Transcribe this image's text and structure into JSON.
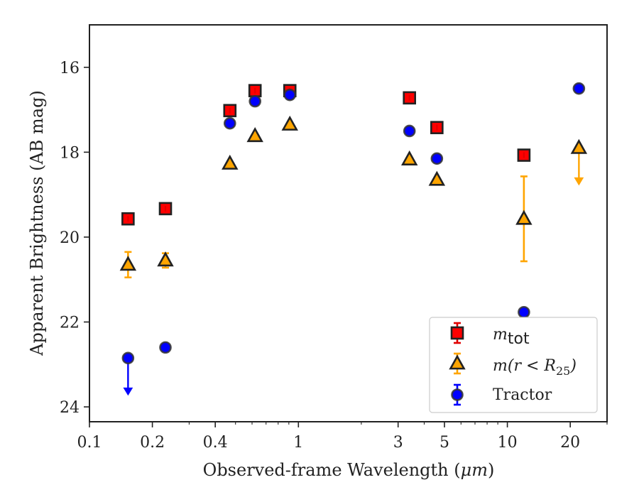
{
  "chart_data": {
    "type": "scatter",
    "xlabel_prefix": "Observed-frame Wavelength (",
    "xlabel_unit": "μm",
    "xlabel_suffix": ")",
    "ylabel": "Apparent Brightness (AB mag)",
    "x_scale": "log",
    "xlim": [
      0.1,
      30
    ],
    "ylim": [
      24.35,
      15.0
    ],
    "y_inverted": true,
    "grid": false,
    "legend_position": "lower right",
    "x_ticks": [
      0.1,
      0.2,
      0.4,
      1,
      3,
      5,
      10,
      20
    ],
    "x_tick_labels": [
      "0.1",
      "0.2",
      "0.4",
      "1",
      "3",
      "5",
      "10",
      "20"
    ],
    "y_ticks": [
      16,
      18,
      20,
      22,
      24
    ],
    "y_tick_labels": [
      "16",
      "18",
      "20",
      "22",
      "24"
    ],
    "series": [
      {
        "key": "mtot",
        "name": "m_tot",
        "legend_main": "m",
        "legend_sub": "tot",
        "marker": "square",
        "color": "#ff0000",
        "edge_color": "#222222",
        "errorbar_color": "#e00000",
        "points": [
          {
            "x": 0.153,
            "y": 19.57
          },
          {
            "x": 0.231,
            "y": 19.33
          },
          {
            "x": 0.47,
            "y": 17.02
          },
          {
            "x": 0.62,
            "y": 16.55
          },
          {
            "x": 0.91,
            "y": 16.55
          },
          {
            "x": 3.4,
            "y": 16.72
          },
          {
            "x": 4.6,
            "y": 17.42
          },
          {
            "x": 12.0,
            "y": 18.07
          }
        ]
      },
      {
        "key": "mr25",
        "name": "m(r < R_25)",
        "legend_main": "m(r < R",
        "legend_sub": "25",
        "legend_tail": ")",
        "marker": "triangle",
        "color": "#ffa500",
        "edge_color": "#222222",
        "errorbar_color": "#ffa500",
        "points": [
          {
            "x": 0.153,
            "y": 20.65,
            "yerr": 0.3
          },
          {
            "x": 0.231,
            "y": 20.55,
            "yerr": 0.17
          },
          {
            "x": 0.47,
            "y": 18.27
          },
          {
            "x": 0.62,
            "y": 17.62
          },
          {
            "x": 0.91,
            "y": 17.35
          },
          {
            "x": 3.4,
            "y": 18.17
          },
          {
            "x": 4.6,
            "y": 18.65
          },
          {
            "x": 12.0,
            "y": 19.57,
            "yerr": 1.0
          },
          {
            "x": 22.0,
            "y": 17.9,
            "upper_limit": true
          }
        ]
      },
      {
        "key": "tractor",
        "name": "Tractor",
        "legend_main": "Tractor",
        "marker": "circle",
        "color": "#0000ff",
        "edge_color": "#333333",
        "errorbar_color": "#0000ff",
        "points": [
          {
            "x": 0.153,
            "y": 22.85,
            "upper_limit": true
          },
          {
            "x": 0.231,
            "y": 22.6
          },
          {
            "x": 0.47,
            "y": 17.32
          },
          {
            "x": 0.62,
            "y": 16.8
          },
          {
            "x": 0.91,
            "y": 16.65
          },
          {
            "x": 3.4,
            "y": 17.5
          },
          {
            "x": 4.6,
            "y": 18.15
          },
          {
            "x": 12.0,
            "y": 21.77
          },
          {
            "x": 22.0,
            "y": 16.5
          }
        ]
      }
    ]
  }
}
